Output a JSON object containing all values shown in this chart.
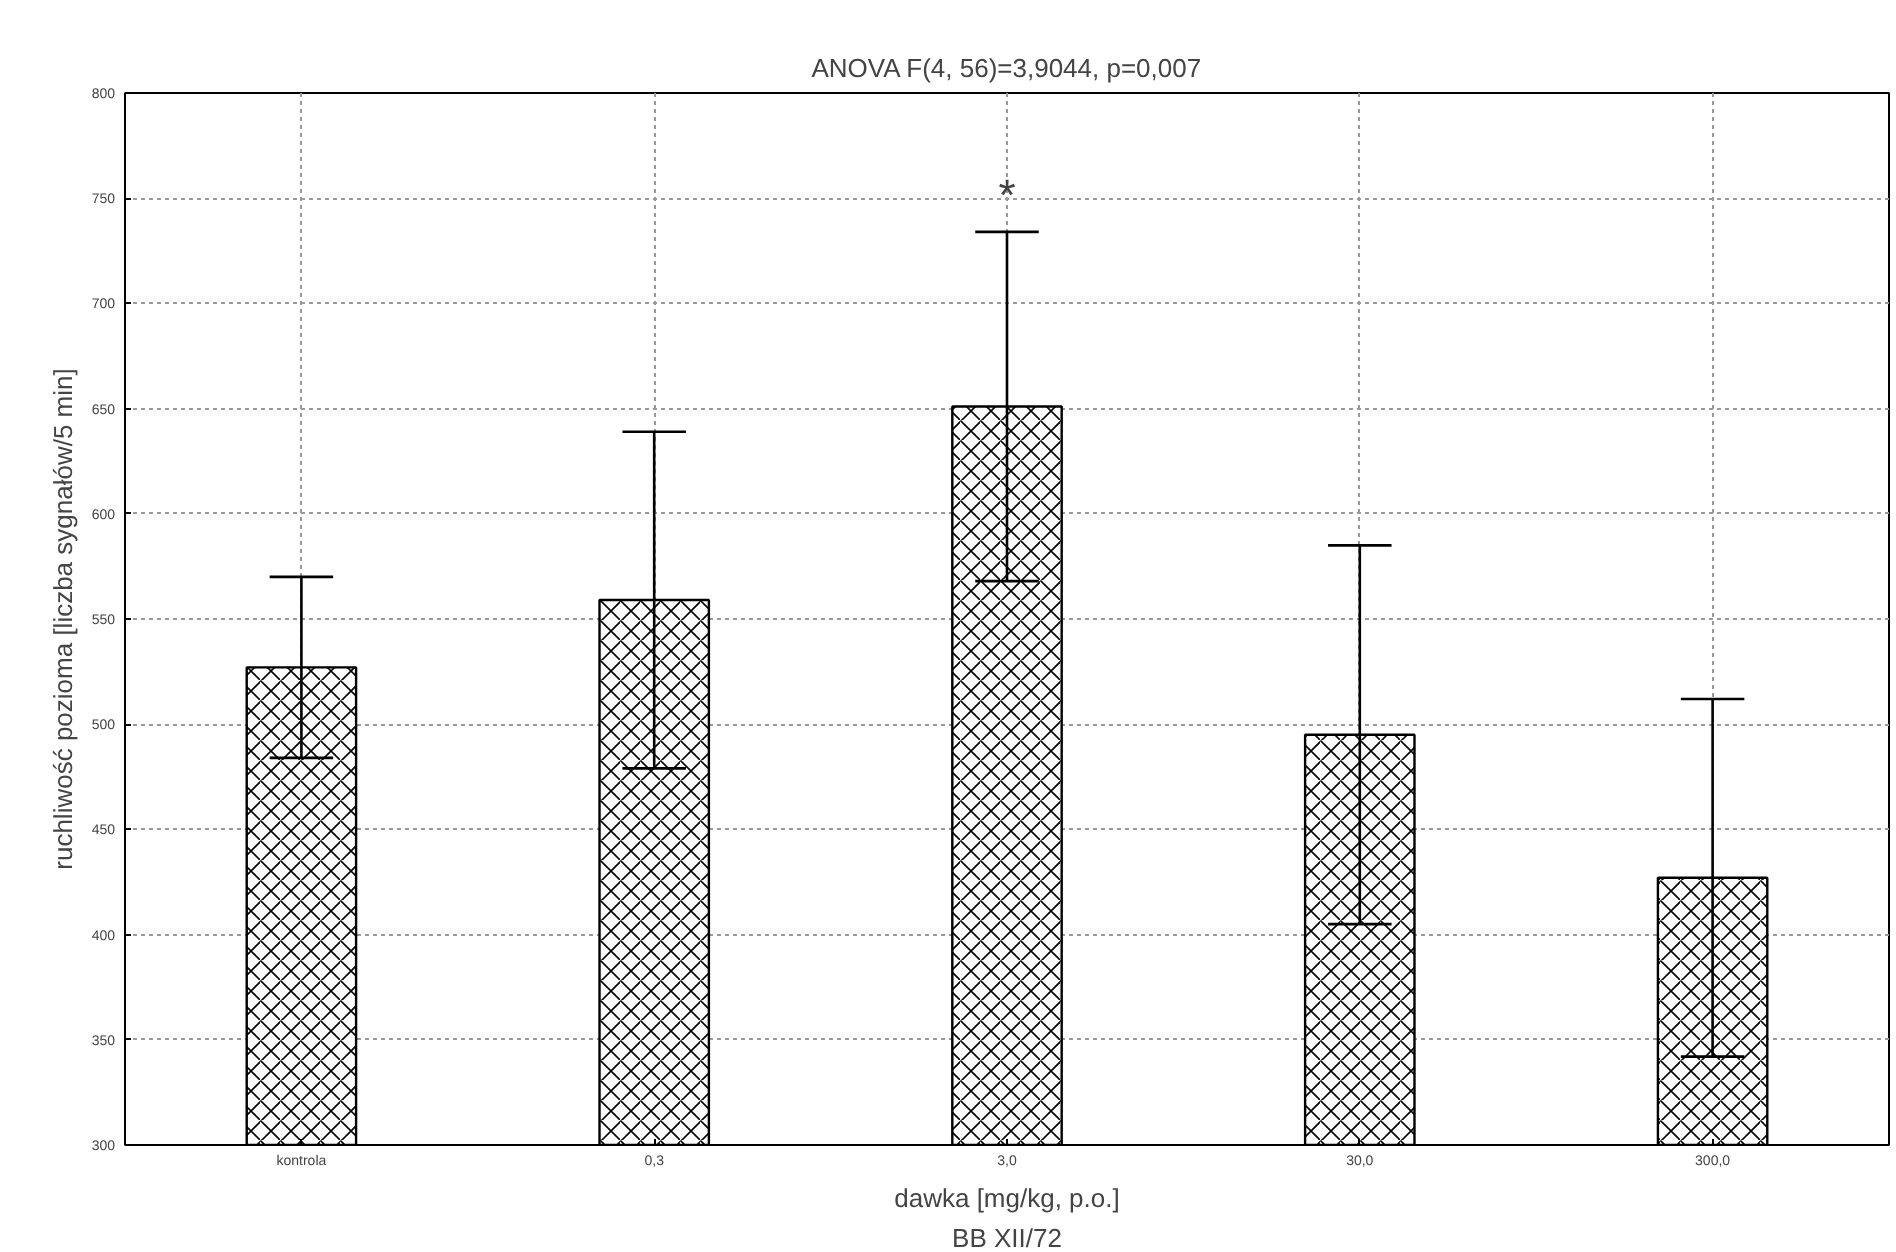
{
  "chart_data": {
    "type": "bar",
    "title": "ANOVA F(4, 56)=3,9044, p=0,007",
    "xlabel": "dawka [mg/kg, p.o.]",
    "ylabel": "ruchliwość pozioma [liczba sygnałów/5 min]",
    "categories": [
      "kontrola",
      "0,3",
      "3,0",
      "30,0",
      "300,0"
    ],
    "values": [
      527,
      559,
      651,
      495,
      427
    ],
    "errors": [
      43,
      80,
      83,
      90,
      85
    ],
    "color": "#ffffff",
    "ylim": [
      300,
      800
    ],
    "yticks": [
      300,
      350,
      400,
      450,
      500,
      550,
      600,
      650,
      700,
      750,
      800
    ],
    "grid": true,
    "annotations": [
      "*",
      "BB XII/72"
    ]
  }
}
